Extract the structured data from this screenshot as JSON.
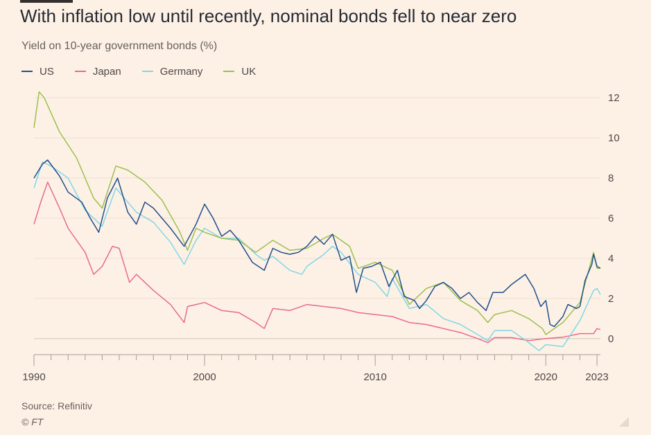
{
  "chart_data": {
    "type": "line",
    "title": "With inflation low until recently, nominal bonds fell to near zero",
    "subtitle": "Yield on 10-year government bonds (%)",
    "xlabel": "",
    "ylabel": "",
    "x_ticks": [
      "1990",
      "2000",
      "2010",
      "2020",
      "2023"
    ],
    "y_ticks": [
      "0",
      "2",
      "4",
      "6",
      "8",
      "10",
      "12"
    ],
    "xlim": [
      1990,
      2023.2
    ],
    "ylim": [
      -0.8,
      12.8
    ],
    "grid": true,
    "legend_position": "top-left",
    "series": [
      {
        "name": "US",
        "color": "#1F4E8C",
        "x": [
          1990,
          1990.5,
          1990.8,
          1991.5,
          1992,
          1992.8,
          1993.3,
          1993.8,
          1994.3,
          1994.9,
          1995.5,
          1996,
          1996.5,
          1997,
          1998,
          1998.8,
          1999.5,
          2000,
          2000.5,
          2001,
          2001.5,
          2002,
          2002.8,
          2003.5,
          2004,
          2004.5,
          2005,
          2005.5,
          2006,
          2006.5,
          2007,
          2007.5,
          2008,
          2008.5,
          2008.9,
          2009.3,
          2009.8,
          2010.3,
          2010.8,
          2011.3,
          2011.7,
          2012.3,
          2012.6,
          2013,
          2013.5,
          2014,
          2014.5,
          2015,
          2015.5,
          2016,
          2016.5,
          2016.9,
          2017.5,
          2018,
          2018.8,
          2019.3,
          2019.7,
          2020,
          2020.25,
          2020.5,
          2021,
          2021.3,
          2021.8,
          2022,
          2022.3,
          2022.7,
          2022.8,
          2023,
          2023.2
        ],
        "values": [
          8.0,
          8.7,
          8.9,
          8.1,
          7.3,
          6.8,
          6.0,
          5.3,
          7.0,
          8.0,
          6.3,
          5.7,
          6.8,
          6.5,
          5.5,
          4.6,
          5.7,
          6.7,
          6.0,
          5.1,
          5.4,
          4.9,
          3.8,
          3.4,
          4.5,
          4.3,
          4.2,
          4.3,
          4.6,
          5.1,
          4.7,
          5.2,
          3.9,
          4.1,
          2.3,
          3.5,
          3.6,
          3.8,
          2.6,
          3.4,
          2.1,
          1.9,
          1.5,
          1.9,
          2.6,
          2.8,
          2.5,
          2.0,
          2.3,
          1.8,
          1.4,
          2.3,
          2.3,
          2.7,
          3.2,
          2.5,
          1.6,
          1.9,
          0.7,
          0.6,
          1.1,
          1.7,
          1.5,
          1.6,
          2.9,
          3.7,
          4.2,
          3.6,
          3.5
        ]
      },
      {
        "name": "Japan",
        "color": "#E8698C",
        "x": [
          1990,
          1990.4,
          1990.8,
          1991.5,
          1992,
          1993,
          1993.5,
          1994,
          1994.6,
          1995,
          1995.6,
          1996,
          1997,
          1998,
          1998.8,
          1999,
          1999.5,
          2000,
          2001,
          2002,
          2003,
          2003.5,
          2004,
          2005,
          2006,
          2007,
          2008,
          2009,
          2010,
          2011,
          2012,
          2013,
          2014,
          2015,
          2016,
          2016.6,
          2017,
          2018,
          2019,
          2020,
          2021,
          2022,
          2022.8,
          2023,
          2023.2
        ],
        "values": [
          5.7,
          6.8,
          7.8,
          6.5,
          5.5,
          4.3,
          3.2,
          3.6,
          4.6,
          4.5,
          2.8,
          3.2,
          2.4,
          1.7,
          0.8,
          1.6,
          1.7,
          1.8,
          1.4,
          1.3,
          0.8,
          0.5,
          1.5,
          1.4,
          1.7,
          1.6,
          1.5,
          1.3,
          1.2,
          1.1,
          0.8,
          0.7,
          0.5,
          0.3,
          0.0,
          -0.2,
          0.05,
          0.05,
          -0.1,
          0.0,
          0.07,
          0.25,
          0.25,
          0.5,
          0.45
        ]
      },
      {
        "name": "Germany",
        "color": "#7FD7E6",
        "x": [
          1990,
          1990.5,
          1991,
          1992,
          1993,
          1994,
          1994.8,
          1995.5,
          1996,
          1997,
          1998,
          1998.8,
          1999.5,
          2000,
          2001,
          2002,
          2003,
          2003.5,
          2004,
          2005,
          2005.7,
          2006,
          2007,
          2007.5,
          2008,
          2009,
          2010,
          2010.7,
          2011,
          2012,
          2013,
          2014,
          2015,
          2016,
          2016.6,
          2017,
          2018,
          2019,
          2019.6,
          2020,
          2021,
          2022,
          2022.8,
          2023,
          2023.2
        ],
        "values": [
          7.5,
          8.8,
          8.6,
          8.0,
          6.4,
          5.6,
          7.5,
          6.8,
          6.3,
          5.8,
          4.8,
          3.7,
          4.9,
          5.5,
          5.0,
          5.0,
          4.2,
          3.9,
          4.1,
          3.4,
          3.2,
          3.6,
          4.2,
          4.6,
          4.3,
          3.2,
          2.8,
          2.1,
          3.0,
          1.5,
          1.7,
          1.0,
          0.7,
          0.2,
          -0.1,
          0.4,
          0.4,
          -0.2,
          -0.6,
          -0.3,
          -0.4,
          0.9,
          2.4,
          2.5,
          2.2
        ]
      },
      {
        "name": "UK",
        "color": "#9BBF4D",
        "x": [
          1990,
          1990.3,
          1990.6,
          1991.5,
          1992.5,
          1993.5,
          1994,
          1994.8,
          1995.5,
          1996.5,
          1997.5,
          1998.5,
          1999,
          1999.5,
          2000,
          2001,
          2002,
          2003,
          2004,
          2005,
          2006,
          2007,
          2007.5,
          2008.5,
          2009,
          2010,
          2011,
          2012,
          2013,
          2014,
          2015,
          2016,
          2016.6,
          2017,
          2018,
          2019,
          2019.8,
          2020,
          2021,
          2022,
          2022.8,
          2023,
          2023.2
        ],
        "values": [
          10.5,
          12.3,
          12.0,
          10.3,
          9.0,
          7.0,
          6.5,
          8.6,
          8.4,
          7.8,
          6.9,
          5.4,
          4.4,
          5.5,
          5.3,
          5.0,
          4.9,
          4.3,
          4.9,
          4.4,
          4.5,
          5.0,
          5.2,
          4.6,
          3.5,
          3.8,
          3.4,
          1.7,
          2.5,
          2.8,
          1.9,
          1.4,
          0.8,
          1.2,
          1.4,
          1.0,
          0.5,
          0.2,
          0.8,
          1.8,
          4.3,
          3.5,
          3.5
        ]
      }
    ]
  },
  "source": "Source: Refinitiv",
  "credit": "© FT"
}
